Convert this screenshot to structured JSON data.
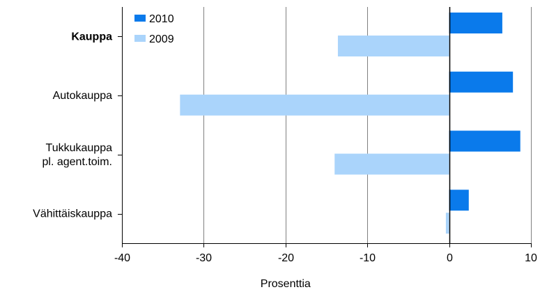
{
  "chart_data": {
    "type": "bar",
    "orientation": "horizontal",
    "categories": [
      {
        "lines": [
          "Kauppa"
        ],
        "bold": true
      },
      {
        "lines": [
          "Autokauppa"
        ],
        "bold": false
      },
      {
        "lines": [
          "Tukkukauppa",
          "pl. agent.toim."
        ],
        "bold": false
      },
      {
        "lines": [
          "Vähittäiskauppa"
        ],
        "bold": false
      }
    ],
    "series": [
      {
        "name": "2010",
        "color": "#0a7aeb",
        "values": [
          6.5,
          7.8,
          8.7,
          2.4
        ]
      },
      {
        "name": "2009",
        "color": "#aad4fb",
        "values": [
          -13.6,
          -32.9,
          -14.0,
          -0.4
        ]
      }
    ],
    "xlabel": "Prosenttia",
    "xlim": [
      -40,
      10
    ],
    "xticks": [
      -40,
      -30,
      -20,
      -10,
      0,
      10
    ],
    "grid": "vertical",
    "legend_position": "top-left",
    "colors": {
      "grid": "#808080",
      "axis": "#000000",
      "zero_line": "#000000"
    }
  }
}
